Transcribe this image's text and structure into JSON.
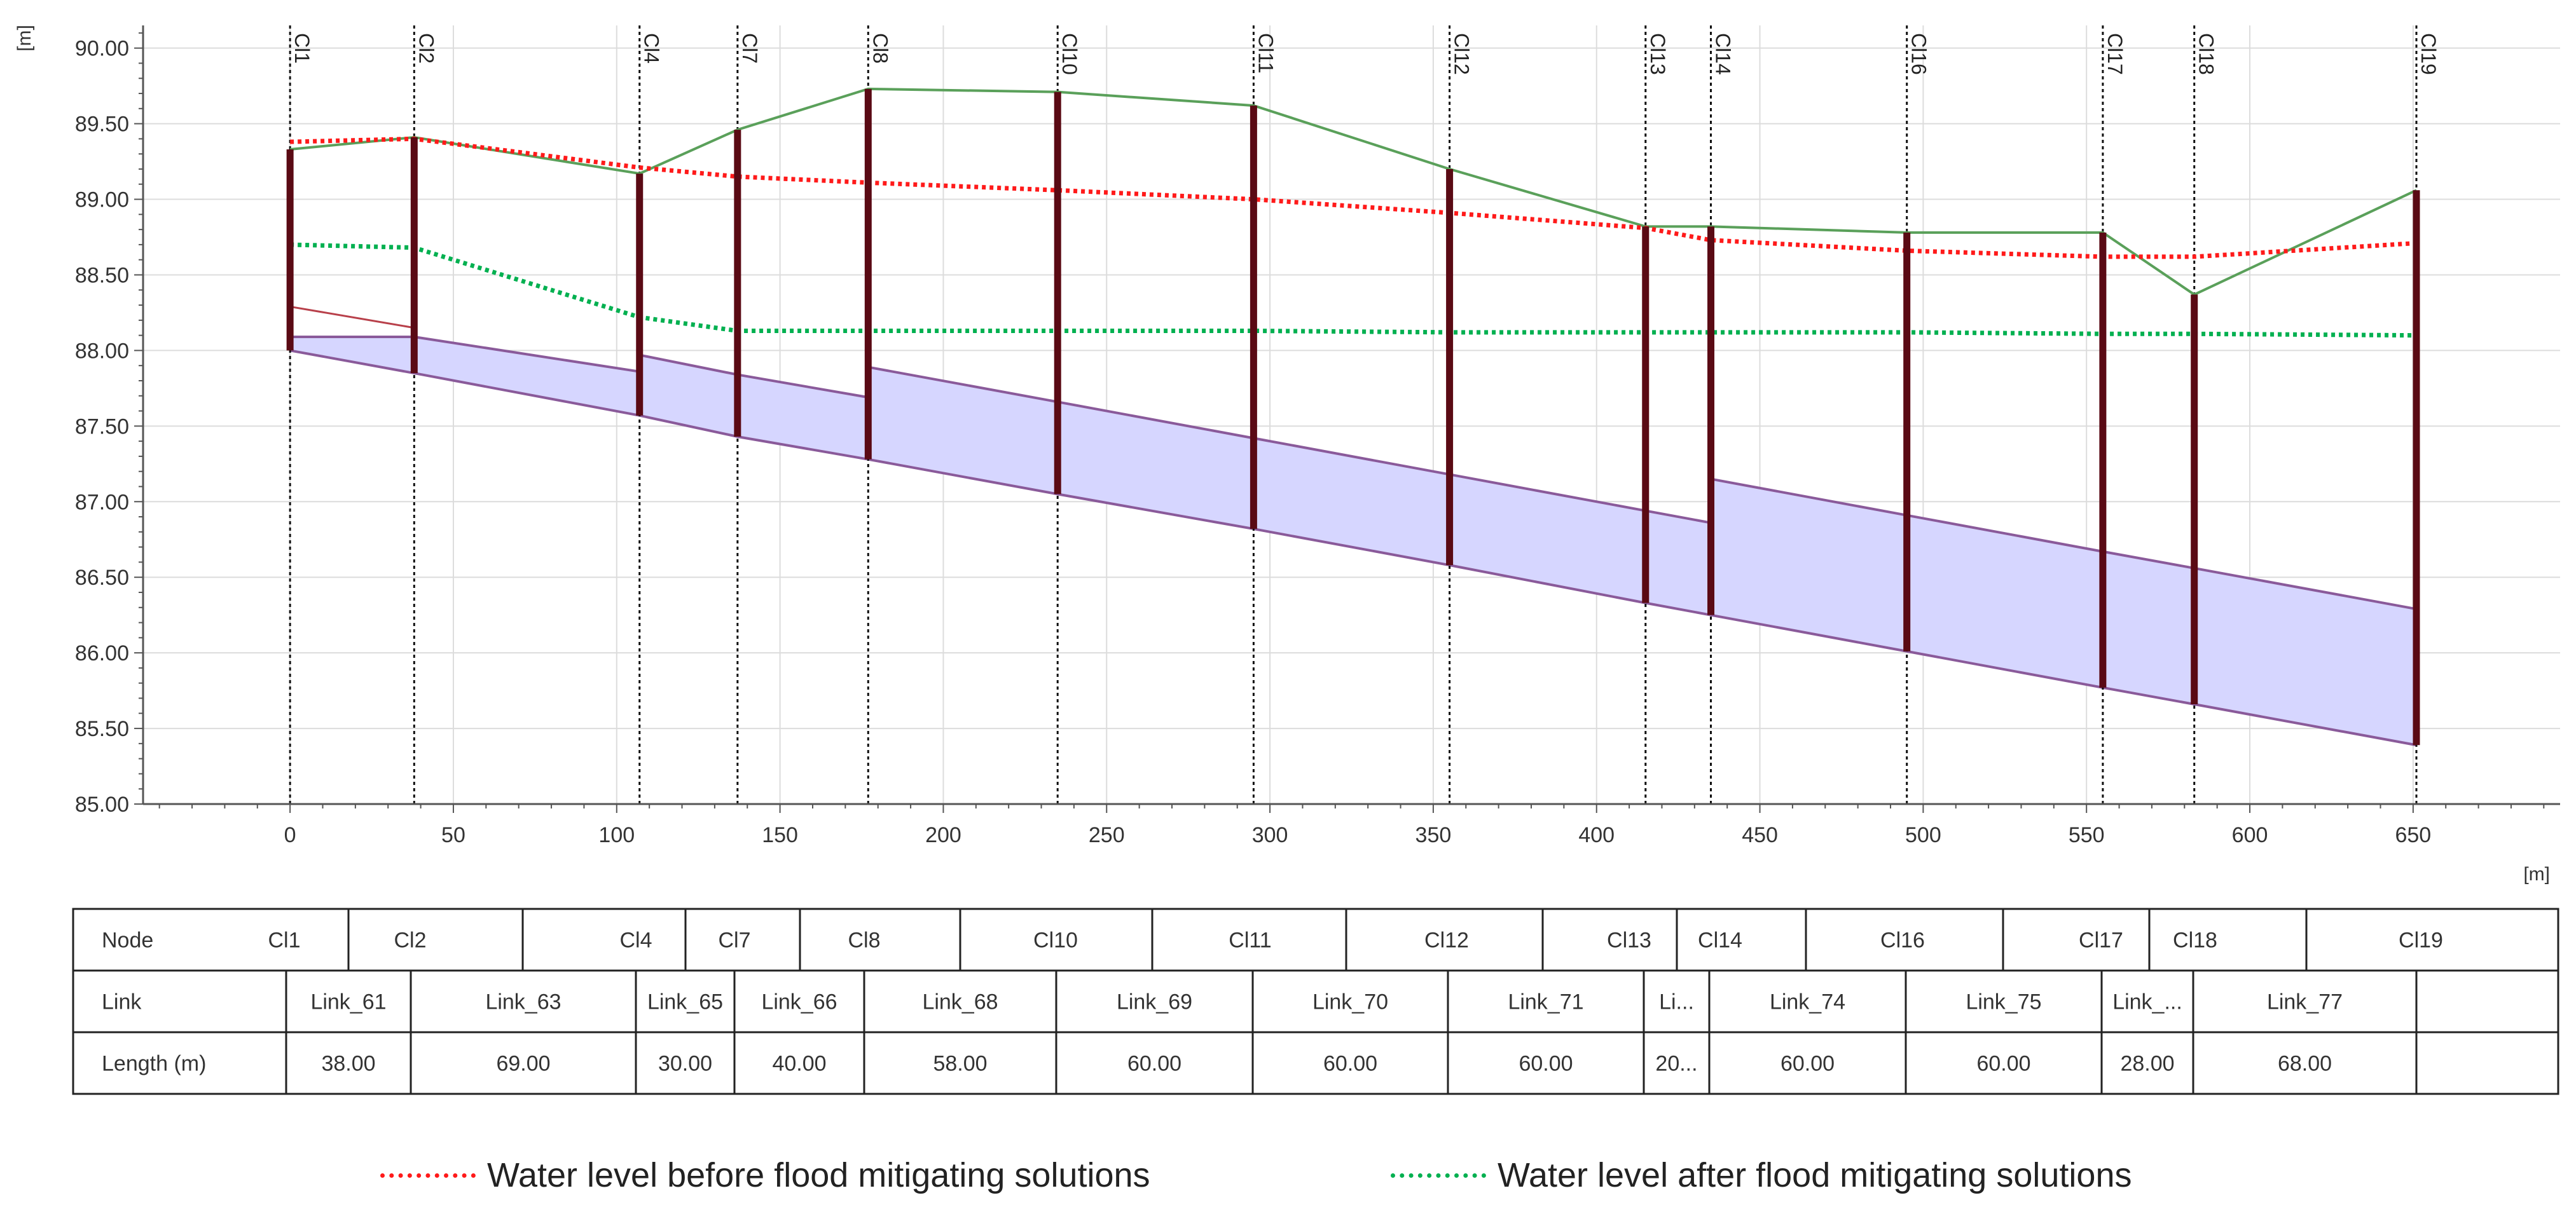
{
  "chart_data": {
    "type": "line",
    "title": "",
    "xlabel": "[m]",
    "ylabel": "[m]",
    "xlim": [
      -45,
      695
    ],
    "ylim": [
      85.0,
      90.15
    ],
    "xticks": [
      0,
      50,
      100,
      150,
      200,
      250,
      300,
      350,
      400,
      450,
      500,
      550,
      600,
      650
    ],
    "yticks": [
      85.0,
      85.5,
      86.0,
      86.5,
      87.0,
      87.5,
      88.0,
      88.5,
      89.0,
      89.5,
      90.0
    ],
    "grid": true,
    "nodes": [
      {
        "name": "Cl1",
        "x": 0,
        "ground": 89.33,
        "invert": 88.0
      },
      {
        "name": "Cl2",
        "x": 38,
        "ground": 89.41,
        "invert": 87.85
      },
      {
        "name": "Cl4",
        "x": 107,
        "ground": 89.17,
        "invert": 87.57
      },
      {
        "name": "Cl7",
        "x": 137,
        "ground": 89.46,
        "invert": 87.43
      },
      {
        "name": "Cl8",
        "x": 177,
        "ground": 89.73,
        "invert": 87.28
      },
      {
        "name": "Cl10",
        "x": 235,
        "ground": 89.71,
        "invert": 87.05
      },
      {
        "name": "Cl11",
        "x": 295,
        "ground": 89.62,
        "invert": 86.82
      },
      {
        "name": "Cl12",
        "x": 355,
        "ground": 89.2,
        "invert": 86.58
      },
      {
        "name": "Cl13",
        "x": 415,
        "ground": 88.82,
        "invert": 86.33
      },
      {
        "name": "Cl14",
        "x": 435,
        "ground": 88.82,
        "invert": 86.25
      },
      {
        "name": "Cl16",
        "x": 495,
        "ground": 88.78,
        "invert": 86.01
      },
      {
        "name": "Cl17",
        "x": 555,
        "ground": 88.78,
        "invert": 85.77
      },
      {
        "name": "Cl18",
        "x": 583,
        "ground": 88.37,
        "invert": 85.66
      },
      {
        "name": "Cl19",
        "x": 651,
        "ground": 89.06,
        "invert": 85.39
      }
    ],
    "conduits": [
      {
        "link": "Link_61",
        "x1": 0,
        "x2": 38,
        "bottom1": 88.0,
        "bottom2": 87.85,
        "top1": 88.09,
        "top2": 88.09
      },
      {
        "link": "Link_63",
        "x1": 38,
        "x2": 107,
        "bottom1": 87.85,
        "bottom2": 87.57,
        "top1": 88.09,
        "top2": 87.86
      },
      {
        "link": "Link_65",
        "x1": 107,
        "x2": 137,
        "bottom1": 87.57,
        "bottom2": 87.43,
        "top1": 87.97,
        "top2": 87.84
      },
      {
        "link": "Link_66",
        "x1": 137,
        "x2": 177,
        "bottom1": 87.43,
        "bottom2": 87.28,
        "top1": 87.84,
        "top2": 87.69
      },
      {
        "link": "Link_68",
        "x1": 177,
        "x2": 235,
        "bottom1": 87.28,
        "bottom2": 87.05,
        "top1": 87.89,
        "top2": 87.66
      },
      {
        "link": "Link_69",
        "x1": 235,
        "x2": 295,
        "bottom1": 87.05,
        "bottom2": 86.82,
        "top1": 87.66,
        "top2": 87.42
      },
      {
        "link": "Link_70",
        "x1": 295,
        "x2": 355,
        "bottom1": 86.82,
        "bottom2": 86.58,
        "top1": 87.42,
        "top2": 87.18
      },
      {
        "link": "Link_71",
        "x1": 355,
        "x2": 415,
        "bottom1": 86.58,
        "bottom2": 86.33,
        "top1": 87.18,
        "top2": 86.94
      },
      {
        "link": "Link_72",
        "x1": 415,
        "x2": 435,
        "bottom1": 86.33,
        "bottom2": 86.25,
        "top1": 86.94,
        "top2": 86.86
      },
      {
        "link": "Link_74",
        "x1": 435,
        "x2": 495,
        "bottom1": 86.25,
        "bottom2": 86.01,
        "top1": 87.15,
        "top2": 86.91
      },
      {
        "link": "Link_75",
        "x1": 495,
        "x2": 555,
        "bottom1": 86.01,
        "bottom2": 85.77,
        "top1": 86.91,
        "top2": 86.67
      },
      {
        "link": "Link_76",
        "x1": 555,
        "x2": 583,
        "bottom1": 85.77,
        "bottom2": 85.66,
        "top1": 86.67,
        "top2": 86.56
      },
      {
        "link": "Link_77",
        "x1": 583,
        "x2": 651,
        "bottom1": 85.66,
        "bottom2": 85.39,
        "top1": 86.56,
        "top2": 86.29
      }
    ],
    "pipe_crown_start": {
      "x": [
        0,
        38
      ],
      "y": [
        88.29,
        88.15
      ]
    },
    "series": [
      {
        "name": "Water level before flood mitigating solutions",
        "color": "#ff1a1a",
        "x": [
          0,
          38,
          107,
          137,
          177,
          235,
          295,
          355,
          415,
          435,
          495,
          555,
          583,
          651
        ],
        "y": [
          89.38,
          89.4,
          89.21,
          89.15,
          89.11,
          89.06,
          89.0,
          88.91,
          88.81,
          88.73,
          88.66,
          88.62,
          88.62,
          88.71
        ]
      },
      {
        "name": "Water level after flood mitigating solutions",
        "color": "#00b050",
        "x": [
          0,
          38,
          107,
          137,
          177,
          235,
          295,
          355,
          415,
          435,
          495,
          555,
          583,
          651
        ],
        "y": [
          88.7,
          88.68,
          88.22,
          88.13,
          88.13,
          88.13,
          88.13,
          88.12,
          88.12,
          88.12,
          88.12,
          88.11,
          88.11,
          88.1
        ]
      }
    ],
    "ground_color": "#5aa05a",
    "conduit_fill": "#d6d6ff",
    "conduit_stroke": "#8a5a9a",
    "manhole_color": "#5a0a14"
  },
  "table": {
    "node_header": "Node",
    "link_header": "Link",
    "length_header": "Length (m)",
    "node_cells": [
      "Cl1",
      "Cl2",
      "Cl4",
      "Cl7",
      "Cl8",
      "Cl10",
      "Cl11",
      "Cl12",
      "Cl13",
      "Cl14",
      "Cl16",
      "Cl17",
      "Cl18",
      "Cl19"
    ],
    "link_cells": [
      "Link_61",
      "Link_63",
      "Link_65",
      "Link_66",
      "Link_68",
      "Link_69",
      "Link_70",
      "Link_71",
      "Li...",
      "Link_74",
      "Link_75",
      "Link_...",
      "Link_77"
    ],
    "length_cells": [
      "38.00",
      "69.00",
      "30.00",
      "40.00",
      "58.00",
      "60.00",
      "60.00",
      "60.00",
      "20...",
      "60.00",
      "60.00",
      "28.00",
      "68.00"
    ]
  },
  "legend": {
    "before_label": "Water level  before flood mitigating solutions",
    "after_label": "Water level  after flood mitigating solutions",
    "before_color": "#ff1a1a",
    "after_color": "#00b050"
  }
}
